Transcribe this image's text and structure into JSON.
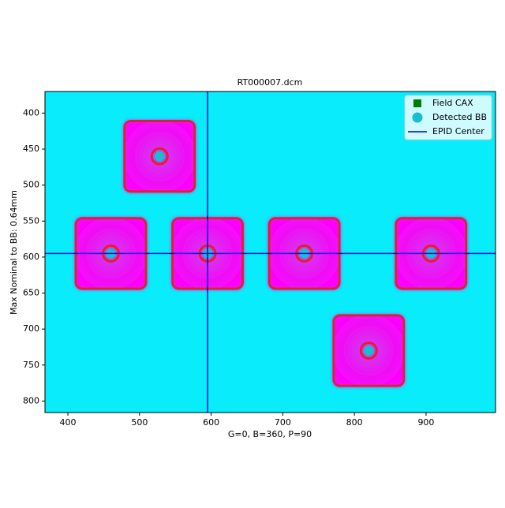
{
  "chart_data": {
    "type": "scatter",
    "title": "RT000007.dcm",
    "x_label": "G=0, B=360, P=90",
    "y_label": "Max Nominal to BB: 0.64mm",
    "xlim": [
      368,
      997
    ],
    "ylim": [
      816,
      370
    ],
    "xticks": [
      400,
      500,
      600,
      700,
      800,
      900
    ],
    "yticks": [
      400,
      450,
      500,
      550,
      600,
      650,
      700,
      750,
      800
    ],
    "legend": "upper right",
    "series": [
      {
        "name": "Field CAX",
        "color": "#008000",
        "marker": "square",
        "x": [
          528,
          460,
          595,
          730,
          907,
          820
        ],
        "values": [
          460,
          595,
          595,
          595,
          595,
          730
        ]
      },
      {
        "name": "Detected BB",
        "color": "#17becf",
        "marker": "circle",
        "x": [
          528,
          460,
          595,
          730,
          907,
          820
        ],
        "values": [
          460,
          595,
          595,
          595,
          595,
          730
        ]
      },
      {
        "name": "EPID Center",
        "color": "#0000cc",
        "marker": "crosshair",
        "x": [
          595
        ],
        "values": [
          595
        ]
      }
    ]
  }
}
